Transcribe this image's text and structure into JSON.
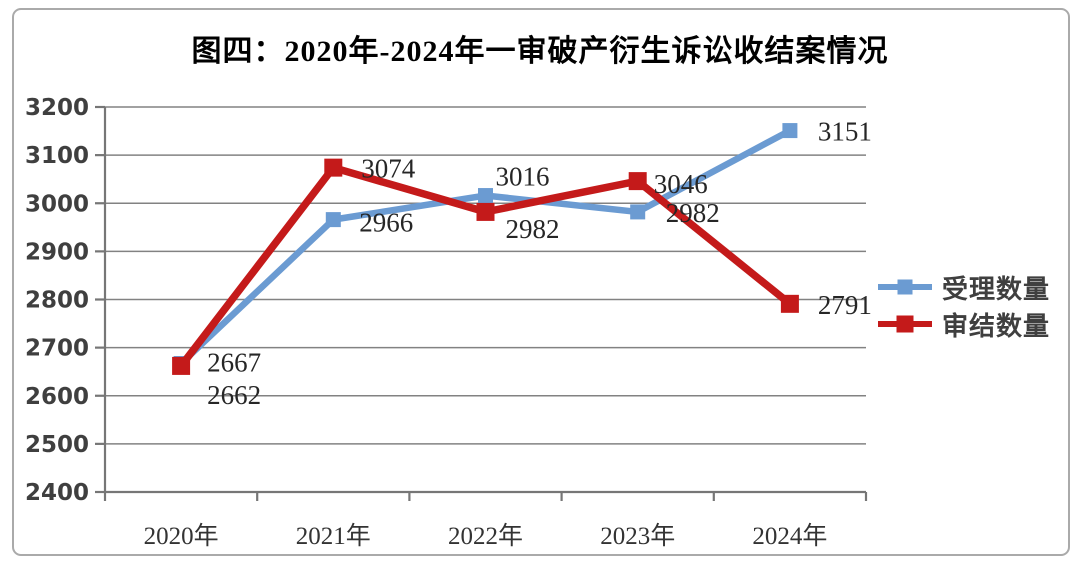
{
  "chart_data": {
    "type": "line",
    "title": "图四：2020年-2024年一审破产衍生诉讼收结案情况",
    "categories": [
      "2020年",
      "2021年",
      "2022年",
      "2023年",
      "2024年"
    ],
    "series": [
      {
        "name": "受理数量",
        "color": "#6b9bd2",
        "values": [
          2667,
          2966,
          3016,
          2982,
          3151
        ]
      },
      {
        "name": "审结数量",
        "color": "#c41a1a",
        "values": [
          2662,
          3074,
          2982,
          3046,
          2791
        ]
      }
    ],
    "ylim": [
      2400,
      3200
    ],
    "y_ticks": [
      2400,
      2500,
      2600,
      2700,
      2800,
      2900,
      3000,
      3100,
      3200
    ],
    "grid": "horizontal",
    "legend_position": "right",
    "data_labels": true
  },
  "colors": {
    "grid": "#828282",
    "axis": "#767676",
    "tick_label": "#3f3f3f",
    "data_label": "#262626",
    "title": "#000000",
    "card_border": "#aaaaaa",
    "background": "#ffffff"
  }
}
